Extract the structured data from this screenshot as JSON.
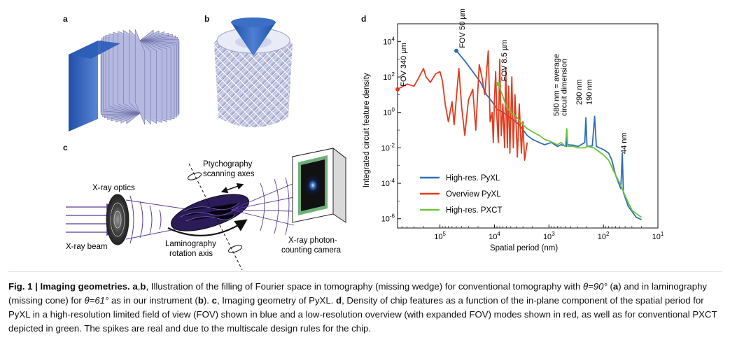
{
  "panels": {
    "a": "a",
    "b": "b",
    "c": "c",
    "d": "d"
  },
  "panel_c": {
    "xray_optics": "X-ray optics",
    "xray_beam": "X-ray beam",
    "ptycho_line1": "Ptychography",
    "ptycho_line2": "scanning axes",
    "lamino_line1": "Laminography",
    "lamino_line2": "rotation axis",
    "camera_line1": "X-ray photon-",
    "camera_line2": "counting camera"
  },
  "chart_data": {
    "type": "line",
    "xlabel": "Spatial period (nm)",
    "ylabel": "Integrated circuit feature density",
    "x_scale": "log-reversed",
    "xlim_nm": [
      600000,
      10
    ],
    "ylim": [
      3e-07,
      100000
    ],
    "y_scale": "log",
    "x_ticks": [
      {
        "value": 100000,
        "label": "10^5"
      },
      {
        "value": 10000,
        "label": "10^4"
      },
      {
        "value": 1000,
        "label": "10^3"
      },
      {
        "value": 100,
        "label": "10^2"
      },
      {
        "value": 10,
        "label": "10^1"
      }
    ],
    "y_ticks": [
      {
        "value": 10000,
        "label": "10^4"
      },
      {
        "value": 100,
        "label": "10^2"
      },
      {
        "value": 1,
        "label": "10^0"
      },
      {
        "value": 0.01,
        "label": "10^-2"
      },
      {
        "value": 0.0001,
        "label": "10^-4"
      },
      {
        "value": 1e-06,
        "label": "10^-6"
      }
    ],
    "legend_position": "bottom-left",
    "series": [
      {
        "name": "High-res. PyXL",
        "color": "#2f6db5",
        "points": [
          [
            50000,
            3000
          ],
          [
            35000,
            800
          ],
          [
            25000,
            200
          ],
          [
            18000,
            50
          ],
          [
            14000,
            10
          ],
          [
            11000,
            4
          ],
          [
            9000,
            1.5
          ],
          [
            7000,
            1
          ],
          [
            5000,
            0.5
          ],
          [
            3500,
            0.2
          ],
          [
            2500,
            0.05
          ],
          [
            2000,
            0.03
          ],
          [
            1500,
            0.02
          ],
          [
            1200,
            0.015
          ],
          [
            900,
            0.02
          ],
          [
            700,
            0.012
          ],
          [
            600,
            0.015
          ],
          [
            480,
            0.012
          ],
          [
            470,
            0.1
          ],
          [
            460,
            0.015
          ],
          [
            350,
            0.014
          ],
          [
            290,
            0.012
          ],
          [
            220,
            0.02
          ],
          [
            210,
            0.5
          ],
          [
            200,
            0.012
          ],
          [
            160,
            0.013
          ],
          [
            145,
            0.6
          ],
          [
            135,
            0.012
          ],
          [
            100,
            0.008
          ],
          [
            80,
            0.005
          ],
          [
            70,
            0.002
          ],
          [
            60,
            0.0003
          ],
          [
            48,
            5e-05
          ],
          [
            45,
            0.005
          ],
          [
            43,
            3e-05
          ],
          [
            35,
            5e-06
          ],
          [
            25,
            1.2e-06
          ],
          [
            20,
            9e-07
          ]
        ]
      },
      {
        "name": "Overview PyXL",
        "color": "#e23b1e",
        "points": [
          [
            600000,
            20
          ],
          [
            400000,
            40
          ],
          [
            300000,
            30
          ],
          [
            250000,
            80
          ],
          [
            200000,
            300
          ],
          [
            180000,
            100
          ],
          [
            150000,
            50
          ],
          [
            120000,
            150
          ],
          [
            100000,
            200
          ],
          [
            90000,
            60
          ],
          [
            80000,
            3
          ],
          [
            70000,
            0.3
          ],
          [
            60000,
            4
          ],
          [
            55000,
            0.2
          ],
          [
            45000,
            300
          ],
          [
            40000,
            2
          ],
          [
            35000,
            0.05
          ],
          [
            30000,
            5
          ],
          [
            25000,
            20
          ],
          [
            22000,
            0.1
          ],
          [
            19000,
            500
          ],
          [
            17000,
            100
          ],
          [
            15000,
            10
          ],
          [
            13000,
            3000
          ],
          [
            12000,
            0.3
          ],
          [
            11000,
            1
          ],
          [
            10500,
            0.02
          ],
          [
            10000,
            5
          ],
          [
            9500,
            200
          ],
          [
            9000,
            0.5
          ],
          [
            8500,
            0.02
          ],
          [
            8000,
            1000
          ],
          [
            7500,
            0.05
          ],
          [
            7000,
            3
          ],
          [
            6500,
            0.01
          ],
          [
            6200,
            300
          ],
          [
            5800,
            0.01
          ],
          [
            5500,
            30
          ],
          [
            5200,
            0.005
          ],
          [
            4800,
            100
          ],
          [
            4500,
            0.01
          ],
          [
            4200,
            10
          ],
          [
            3800,
            0.003
          ],
          [
            3500,
            3
          ],
          [
            3200,
            0.005
          ],
          [
            3000,
            0.3
          ],
          [
            2800,
            0.002
          ],
          [
            2500,
            0.02
          ]
        ]
      },
      {
        "name": "High-res. PXCT",
        "color": "#6ac43a",
        "points": [
          [
            8500,
            40
          ],
          [
            7000,
            8
          ],
          [
            6000,
            2
          ],
          [
            5000,
            1
          ],
          [
            4000,
            0.6
          ],
          [
            3000,
            0.2
          ],
          [
            2500,
            0.12
          ],
          [
            2000,
            0.08
          ],
          [
            1500,
            0.05
          ],
          [
            1200,
            0.03
          ],
          [
            1000,
            0.025
          ],
          [
            700,
            0.015
          ],
          [
            600,
            0.02
          ],
          [
            500,
            0.012
          ],
          [
            470,
            0.12
          ],
          [
            450,
            0.012
          ],
          [
            350,
            0.012
          ],
          [
            300,
            0.01
          ],
          [
            220,
            0.01
          ],
          [
            200,
            0.012
          ],
          [
            150,
            0.01
          ],
          [
            120,
            0.006
          ],
          [
            100,
            0.004
          ],
          [
            80,
            0.002
          ],
          [
            65,
            0.0005
          ],
          [
            50,
            0.0001
          ],
          [
            40,
            2e-05
          ],
          [
            30,
            3e-06
          ],
          [
            22,
            1.5e-06
          ],
          [
            20,
            1.2e-06
          ]
        ]
      }
    ],
    "annotations": [
      {
        "text": "FOV 340 µm",
        "x": 600000,
        "y": 20,
        "color": "#e23b1e"
      },
      {
        "text": "FOV 50 µm",
        "x": 50000,
        "y": 3000,
        "color": "#2f6db5"
      },
      {
        "text": "FOV 8.5 µm",
        "x": 8500,
        "y": 40,
        "color": "#6ac43a"
      },
      {
        "text_lines": [
          "580 nm = average",
          "circuit dimension"
        ],
        "x": 580
      },
      {
        "text": "290 nm",
        "x": 290
      },
      {
        "text": "190 nm",
        "x": 190
      },
      {
        "text": "44 nm",
        "x": 44
      }
    ]
  },
  "caption": {
    "fig_label": "Fig. 1 | Imaging geometries.",
    "ab_label": "a",
    "ab_sep": ",",
    "b_label": "b",
    "ab_text": ", Illustration of the filling of Fourier space in tomography (missing wedge) for conventional tomography with ",
    "theta1": "θ=90°",
    "paren_a_open": " (",
    "a_ref": "a",
    "a_close_text": ") and in laminography (missing cone) for ",
    "theta2": "θ=61°",
    "b_text": " as in our instrument (",
    "b_ref": "b",
    "b_close": "). ",
    "c_label": "c",
    "c_text": ", Imaging geometry of PyXL. ",
    "d_label": "d",
    "d_text": ", Density of chip features as a function of the in-plane component of the spatial period for PyXL in a high-resolution limited field of view (FOV) shown in blue and a low-resolution overview (with expanded FOV) modes shown in red, as well as for conventional PXCT depicted in green. The spikes are real and due to the multiscale design rules for the chip."
  }
}
